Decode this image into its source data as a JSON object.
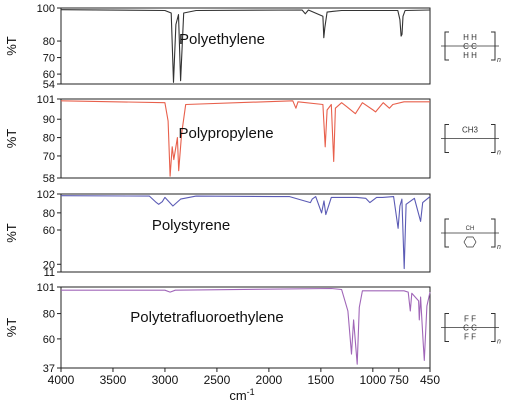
{
  "chart_data": {
    "type": "line",
    "xlabel": "cm",
    "xlabel_superscript": "-1",
    "x_reversed": true,
    "xlim": [
      4000,
      450
    ],
    "x_ticks": [
      4000,
      3500,
      3000,
      2500,
      2000,
      1500,
      1000,
      750,
      450
    ],
    "ylabel": "%T",
    "grid": false,
    "panels": [
      {
        "name": "Polyethylene",
        "color": "#333333",
        "ylim": [
          54,
          100
        ],
        "y_ticks": [
          54,
          60,
          70,
          80,
          100
        ],
        "structure": {
          "top": "H H",
          "bottom": "H H",
          "chain": "C C",
          "subscript": "n"
        },
        "baseline": 99,
        "x": [
          4000,
          3000,
          2940,
          2918,
          2895,
          2870,
          2849,
          2820,
          2700,
          1680,
          1650,
          1620,
          1480,
          1472,
          1462,
          1440,
          1380,
          1300,
          760,
          740,
          728,
          719,
          710,
          690,
          450
        ],
        "y": [
          99,
          98.5,
          97,
          55,
          90,
          96,
          56,
          97,
          98.5,
          98.8,
          96.5,
          98.8,
          95,
          82,
          88,
          97.5,
          98,
          98.5,
          98.5,
          93,
          83,
          84,
          95,
          98.5,
          98.8
        ]
      },
      {
        "name": "Polypropylene",
        "color": "#e8604c",
        "ylim": [
          58,
          101
        ],
        "y_ticks": [
          58,
          70,
          80,
          90,
          101
        ],
        "structure": {
          "top": "CH3",
          "subscript": "n"
        },
        "baseline": 100,
        "x": [
          4000,
          3000,
          2970,
          2950,
          2930,
          2915,
          2880,
          2868,
          2840,
          2800,
          1770,
          1740,
          1720,
          1480,
          1458,
          1440,
          1400,
          1376,
          1360,
          1300,
          1255,
          1168,
          1100,
          997,
          973,
          900,
          841,
          808,
          700,
          450
        ],
        "y": [
          100,
          99,
          89,
          59,
          75,
          68,
          80,
          62,
          82,
          98,
          100,
          96,
          99.5,
          98,
          75,
          95,
          98,
          67,
          96,
          99,
          97,
          93,
          99,
          95,
          94,
          99,
          96,
          98,
          99.5,
          99.5
        ],
        "x_ticks": []
      },
      {
        "name": "Polystyrene",
        "color": "#5b5bb5",
        "ylim": [
          11,
          102
        ],
        "y_ticks": [
          11,
          20,
          60,
          80,
          102
        ],
        "structure": {
          "label": "CH",
          "subscript": "n"
        },
        "baseline": 100,
        "x": [
          4000,
          3150,
          3082,
          3060,
          3025,
          3000,
          2923,
          2849,
          2700,
          1945,
          1870,
          1801,
          1601,
          1583,
          1550,
          1493,
          1470,
          1452,
          1400,
          1154,
          1069,
          1028,
          964,
          906,
          800,
          757,
          740,
          720,
          698,
          680,
          600,
          540,
          520,
          450
        ],
        "y": [
          100,
          99.5,
          92,
          90,
          93,
          98,
          88,
          96,
          99.5,
          99,
          99,
          99,
          92,
          96,
          99,
          80,
          94,
          78,
          98,
          98,
          97,
          92,
          98,
          98,
          99,
          62,
          88,
          96,
          15,
          90,
          97,
          70,
          92,
          99
        ]
      },
      {
        "name": "Polytetrafluoroethylene",
        "color": "#a066b8",
        "ylim": [
          37,
          101
        ],
        "y_ticks": [
          37,
          60,
          80,
          101
        ],
        "structure": {
          "top": "F F",
          "bottom": "F F",
          "chain": "C C",
          "subscript": "n"
        },
        "baseline": 100,
        "x": [
          4000,
          3000,
          2950,
          2900,
          1400,
          1300,
          1240,
          1205,
          1185,
          1150,
          1130,
          1100,
          700,
          660,
          640,
          625,
          560,
          553,
          540,
          516,
          505,
          480,
          450
        ],
        "y": [
          98.5,
          98.5,
          97,
          98.5,
          99.8,
          99,
          82,
          48,
          75,
          40,
          85,
          98,
          98,
          97,
          82,
          96,
          90,
          75,
          93,
          58,
          43,
          86,
          97
        ]
      }
    ]
  }
}
